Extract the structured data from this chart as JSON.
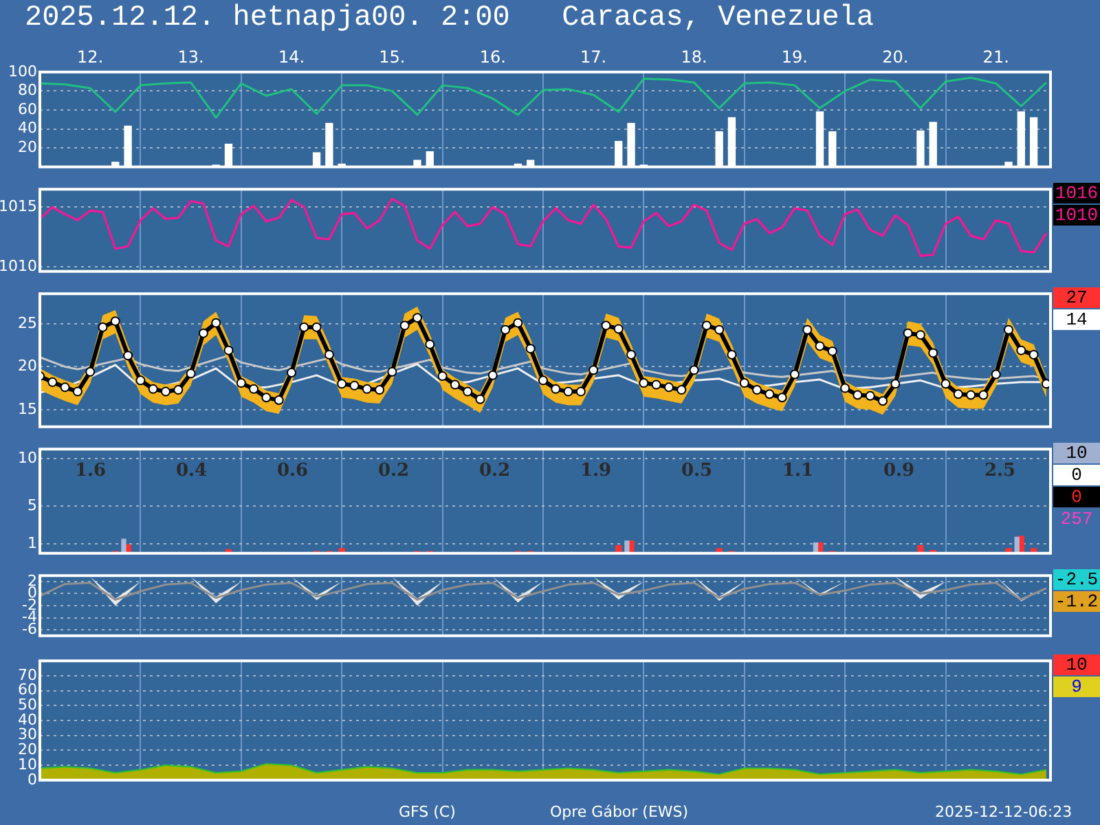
{
  "chart_data": [
    {
      "type": "line",
      "title": "2025.12.12. hetnapja00. 2:00   Caracas, Venezuela",
      "xlim": [
        "2025-12-12T00:00",
        "2025-12-22T01:00"
      ],
      "xticks": [
        {
          "value": "2025-12-12T12:00",
          "label": "12."
        },
        {
          "value": "2025-12-13T00:00",
          "label": null
        },
        {
          "value": "2025-12-13T12:00",
          "label": "13."
        },
        {
          "value": "2025-12-14T00:00",
          "label": null
        },
        {
          "value": "2025-12-14T12:00",
          "label": "14."
        },
        {
          "value": "2025-12-15T00:00",
          "label": null
        },
        {
          "value": "2025-12-15T12:00",
          "label": "15."
        },
        {
          "value": "2025-12-16T00:00",
          "label": null
        },
        {
          "value": "2025-12-16T12:00",
          "label": "16."
        },
        {
          "value": "2025-12-17T00:00",
          "label": null
        },
        {
          "value": "2025-12-17T12:00",
          "label": "17."
        },
        {
          "value": "2025-12-18T00:00",
          "label": null
        },
        {
          "value": "2025-12-18T12:00",
          "label": "18."
        },
        {
          "value": "2025-12-19T00:00",
          "label": null
        },
        {
          "value": "2025-12-19T12:00",
          "label": "19."
        },
        {
          "value": "2025-12-20T00:00",
          "label": null
        },
        {
          "value": "2025-12-20T12:00",
          "label": "20."
        },
        {
          "value": "2025-12-21T00:00",
          "label": null
        },
        {
          "value": "2025-12-21T12:00",
          "label": "21."
        }
      ],
      "ylim": [
        0,
        100
      ],
      "yticks": [
        20,
        40,
        60,
        80,
        100
      ],
      "grid": true,
      "x": [
        "2025-12-12T00:00",
        "2025-12-12T06:00",
        "2025-12-12T12:00",
        "2025-12-12T18:00",
        "2025-12-13T00:00",
        "2025-12-13T06:00",
        "2025-12-13T12:00",
        "2025-12-13T18:00",
        "2025-12-14T00:00",
        "2025-12-14T06:00",
        "2025-12-14T12:00",
        "2025-12-14T18:00",
        "2025-12-15T00:00",
        "2025-12-15T06:00",
        "2025-12-15T12:00",
        "2025-12-15T18:00",
        "2025-12-16T00:00",
        "2025-12-16T06:00",
        "2025-12-16T12:00",
        "2025-12-16T18:00",
        "2025-12-17T00:00",
        "2025-12-17T06:00",
        "2025-12-17T12:00",
        "2025-12-17T18:00",
        "2025-12-18T00:00",
        "2025-12-18T06:00",
        "2025-12-18T12:00",
        "2025-12-18T18:00",
        "2025-12-19T00:00",
        "2025-12-19T06:00",
        "2025-12-19T12:00",
        "2025-12-19T18:00",
        "2025-12-20T00:00",
        "2025-12-20T06:00",
        "2025-12-20T12:00",
        "2025-12-20T18:00",
        "2025-12-21T00:00",
        "2025-12-21T06:00",
        "2025-12-21T12:00",
        "2025-12-21T18:00",
        "2025-12-22T00:00"
      ],
      "series": [
        {
          "type": "bar",
          "color": "#ffffff",
          "x": [
            "2025-12-12T18:00",
            "2025-12-12T21:00",
            "2025-12-13T18:00",
            "2025-12-13T21:00",
            "2025-12-14T18:00",
            "2025-12-14T21:00",
            "2025-12-15T00:00",
            "2025-12-15T18:00",
            "2025-12-15T21:00",
            "2025-12-16T18:00",
            "2025-12-16T21:00",
            "2025-12-17T18:00",
            "2025-12-17T21:00",
            "2025-12-18T00:00",
            "2025-12-18T18:00",
            "2025-12-18T21:00",
            "2025-12-19T18:00",
            "2025-12-19T21:00",
            "2025-12-20T18:00",
            "2025-12-20T21:00",
            "2025-12-21T15:00",
            "2025-12-21T18:00",
            "2025-12-21T21:00"
          ],
          "values": [
            5,
            43,
            2,
            24,
            15,
            46,
            3,
            7,
            16,
            3,
            7,
            27,
            46,
            2,
            37,
            52,
            58,
            37,
            38,
            47,
            5,
            58,
            52
          ]
        },
        {
          "type": "line",
          "color": "#20c080",
          "values": [
            88,
            87,
            83,
            58,
            86,
            88,
            89,
            52,
            88,
            75,
            82,
            56,
            86,
            86,
            80,
            55,
            86,
            83,
            72,
            55,
            81,
            82,
            76,
            58,
            93,
            92,
            89,
            62,
            88,
            89,
            86,
            62,
            80,
            92,
            90,
            62,
            90,
            94,
            88,
            64,
            89
          ]
        }
      ]
    },
    {
      "type": "line",
      "tick_labels": "y",
      "xlim": [
        "2025-12-12T00:00",
        "2025-12-22T01:00"
      ],
      "xticks": [
        {
          "value": "2025-12-13T00:00",
          "label": null
        },
        {
          "value": "2025-12-14T00:00",
          "label": null
        },
        {
          "value": "2025-12-15T00:00",
          "label": null
        },
        {
          "value": "2025-12-16T00:00",
          "label": null
        },
        {
          "value": "2025-12-17T00:00",
          "label": null
        },
        {
          "value": "2025-12-18T00:00",
          "label": null
        },
        {
          "value": "2025-12-19T00:00",
          "label": null
        },
        {
          "value": "2025-12-20T00:00",
          "label": null
        },
        {
          "value": "2025-12-21T00:00",
          "label": null
        }
      ],
      "ylim": [
        1009.6,
        1016.5
      ],
      "yticks": [
        1010,
        1015
      ],
      "grid": true,
      "annotations": [
        "1016",
        "1010"
      ],
      "x": [
        "2025-12-12T00:00",
        "2025-12-12T03:00",
        "2025-12-12T06:00",
        "2025-12-12T09:00",
        "2025-12-12T12:00",
        "2025-12-12T15:00",
        "2025-12-12T18:00",
        "2025-12-12T21:00",
        "2025-12-13T00:00",
        "2025-12-13T03:00",
        "2025-12-13T06:00",
        "2025-12-13T09:00",
        "2025-12-13T12:00",
        "2025-12-13T15:00",
        "2025-12-13T18:00",
        "2025-12-13T21:00",
        "2025-12-14T00:00",
        "2025-12-14T03:00",
        "2025-12-14T06:00",
        "2025-12-14T09:00",
        "2025-12-14T12:00",
        "2025-12-14T15:00",
        "2025-12-14T18:00",
        "2025-12-14T21:00",
        "2025-12-15T00:00",
        "2025-12-15T03:00",
        "2025-12-15T06:00",
        "2025-12-15T09:00",
        "2025-12-15T12:00",
        "2025-12-15T15:00",
        "2025-12-15T18:00",
        "2025-12-15T21:00",
        "2025-12-16T00:00",
        "2025-12-16T03:00",
        "2025-12-16T06:00",
        "2025-12-16T09:00",
        "2025-12-16T12:00",
        "2025-12-16T15:00",
        "2025-12-16T18:00",
        "2025-12-16T21:00",
        "2025-12-17T00:00",
        "2025-12-17T03:00",
        "2025-12-17T06:00",
        "2025-12-17T09:00",
        "2025-12-17T12:00",
        "2025-12-17T15:00",
        "2025-12-17T18:00",
        "2025-12-17T21:00",
        "2025-12-18T00:00",
        "2025-12-18T03:00",
        "2025-12-18T06:00",
        "2025-12-18T09:00",
        "2025-12-18T12:00",
        "2025-12-18T15:00",
        "2025-12-18T18:00",
        "2025-12-18T21:00",
        "2025-12-19T00:00",
        "2025-12-19T03:00",
        "2025-12-19T06:00",
        "2025-12-19T09:00",
        "2025-12-19T12:00",
        "2025-12-19T15:00",
        "2025-12-19T18:00",
        "2025-12-19T21:00",
        "2025-12-20T00:00",
        "2025-12-20T03:00",
        "2025-12-20T06:00",
        "2025-12-20T09:00",
        "2025-12-20T12:00",
        "2025-12-20T15:00",
        "2025-12-20T18:00",
        "2025-12-20T21:00",
        "2025-12-21T00:00",
        "2025-12-21T03:00",
        "2025-12-21T06:00",
        "2025-12-21T09:00",
        "2025-12-21T12:00",
        "2025-12-21T15:00",
        "2025-12-21T18:00",
        "2025-12-21T21:00",
        "2025-12-22T00:00"
      ],
      "series": [
        {
          "color": "#ff1493",
          "values": [
            1014.0,
            1015.0,
            1014.4,
            1013.9,
            1014.7,
            1014.6,
            1011.5,
            1011.7,
            1013.9,
            1014.9,
            1014.0,
            1014.1,
            1015.5,
            1015.3,
            1012.2,
            1011.7,
            1014.4,
            1015.1,
            1013.8,
            1014.1,
            1015.6,
            1015.0,
            1012.4,
            1012.3,
            1014.4,
            1014.5,
            1013.2,
            1013.9,
            1015.7,
            1015.1,
            1012.2,
            1011.5,
            1013.5,
            1014.6,
            1013.4,
            1013.6,
            1015.0,
            1014.4,
            1011.9,
            1011.7,
            1013.8,
            1014.9,
            1013.9,
            1013.6,
            1015.2,
            1014.0,
            1011.7,
            1011.6,
            1013.8,
            1014.5,
            1013.4,
            1013.8,
            1015.2,
            1014.7,
            1012.0,
            1011.4,
            1013.6,
            1014.0,
            1012.8,
            1013.3,
            1014.9,
            1014.7,
            1012.6,
            1011.8,
            1014.4,
            1014.8,
            1013.1,
            1012.6,
            1014.3,
            1013.5,
            1010.9,
            1011.0,
            1013.6,
            1014.2,
            1012.6,
            1012.3,
            1013.9,
            1013.6,
            1011.3,
            1011.2,
            1012.8
          ]
        }
      ]
    },
    {
      "type": "line",
      "tick_labels": "y",
      "xlim": [
        "2025-12-12T00:00",
        "2025-12-22T01:00"
      ],
      "xticks": [
        {
          "value": "2025-12-13T00:00",
          "label": null
        },
        {
          "value": "2025-12-14T00:00",
          "label": null
        },
        {
          "value": "2025-12-15T00:00",
          "label": null
        },
        {
          "value": "2025-12-16T00:00",
          "label": null
        },
        {
          "value": "2025-12-17T00:00",
          "label": null
        },
        {
          "value": "2025-12-18T00:00",
          "label": null
        },
        {
          "value": "2025-12-19T00:00",
          "label": null
        },
        {
          "value": "2025-12-20T00:00",
          "label": null
        },
        {
          "value": "2025-12-21T00:00",
          "label": null
        }
      ],
      "ylim": [
        13,
        28.5
      ],
      "yticks": [
        15,
        20,
        25
      ],
      "grid": true,
      "annotations": [
        "27",
        "14"
      ],
      "x": [
        "2025-12-12T00:00",
        "2025-12-12T03:00",
        "2025-12-12T06:00",
        "2025-12-12T09:00",
        "2025-12-12T12:00",
        "2025-12-12T15:00",
        "2025-12-12T18:00",
        "2025-12-12T21:00",
        "2025-12-13T00:00",
        "2025-12-13T03:00",
        "2025-12-13T06:00",
        "2025-12-13T09:00",
        "2025-12-13T12:00",
        "2025-12-13T15:00",
        "2025-12-13T18:00",
        "2025-12-13T21:00",
        "2025-12-14T00:00",
        "2025-12-14T03:00",
        "2025-12-14T06:00",
        "2025-12-14T09:00",
        "2025-12-14T12:00",
        "2025-12-14T15:00",
        "2025-12-14T18:00",
        "2025-12-14T21:00",
        "2025-12-15T00:00",
        "2025-12-15T03:00",
        "2025-12-15T06:00",
        "2025-12-15T09:00",
        "2025-12-15T12:00",
        "2025-12-15T15:00",
        "2025-12-15T18:00",
        "2025-12-15T21:00",
        "2025-12-16T00:00",
        "2025-12-16T03:00",
        "2025-12-16T06:00",
        "2025-12-16T09:00",
        "2025-12-16T12:00",
        "2025-12-16T15:00",
        "2025-12-16T18:00",
        "2025-12-16T21:00",
        "2025-12-17T00:00",
        "2025-12-17T03:00",
        "2025-12-17T06:00",
        "2025-12-17T09:00",
        "2025-12-17T12:00",
        "2025-12-17T15:00",
        "2025-12-17T18:00",
        "2025-12-17T21:00",
        "2025-12-18T00:00",
        "2025-12-18T03:00",
        "2025-12-18T06:00",
        "2025-12-18T09:00",
        "2025-12-18T12:00",
        "2025-12-18T15:00",
        "2025-12-18T18:00",
        "2025-12-18T21:00",
        "2025-12-19T00:00",
        "2025-12-19T03:00",
        "2025-12-19T06:00",
        "2025-12-19T09:00",
        "2025-12-19T12:00",
        "2025-12-19T15:00",
        "2025-12-19T18:00",
        "2025-12-19T21:00",
        "2025-12-20T00:00",
        "2025-12-20T03:00",
        "2025-12-20T06:00",
        "2025-12-20T09:00",
        "2025-12-20T12:00",
        "2025-12-20T15:00",
        "2025-12-20T18:00",
        "2025-12-20T21:00",
        "2025-12-21T00:00",
        "2025-12-21T03:00",
        "2025-12-21T06:00",
        "2025-12-21T09:00",
        "2025-12-21T12:00",
        "2025-12-21T15:00",
        "2025-12-21T18:00",
        "2025-12-21T21:00",
        "2025-12-22T00:00"
      ],
      "series": [
        {
          "color": "#c8c8c8",
          "x": [
            "2025-12-12T00:00",
            "2025-12-12T06:00",
            "2025-12-12T09:00",
            "2025-12-12T21:00",
            "2025-12-13T00:00",
            "2025-12-13T06:00",
            "2025-12-13T09:00",
            "2025-12-13T21:00",
            "2025-12-14T00:00",
            "2025-12-14T06:00",
            "2025-12-14T09:00",
            "2025-12-14T21:00",
            "2025-12-15T00:00",
            "2025-12-15T06:00",
            "2025-12-15T09:00",
            "2025-12-15T21:00",
            "2025-12-16T00:00",
            "2025-12-16T06:00",
            "2025-12-16T09:00",
            "2025-12-16T21:00",
            "2025-12-17T00:00",
            "2025-12-17T06:00",
            "2025-12-17T09:00",
            "2025-12-17T21:00",
            "2025-12-18T00:00",
            "2025-12-18T06:00",
            "2025-12-18T09:00",
            "2025-12-18T21:00",
            "2025-12-19T00:00",
            "2025-12-19T06:00",
            "2025-12-19T09:00",
            "2025-12-19T21:00",
            "2025-12-20T00:00",
            "2025-12-20T06:00",
            "2025-12-20T09:00",
            "2025-12-20T21:00",
            "2025-12-21T00:00",
            "2025-12-21T06:00",
            "2025-12-21T09:00",
            "2025-12-21T21:00",
            "2025-12-22T00:00"
          ],
          "values": [
            21.1,
            20.0,
            19.7,
            21.0,
            20.3,
            19.6,
            19.5,
            21.3,
            20.5,
            19.8,
            19.6,
            21.0,
            20.3,
            19.5,
            19.4,
            20.8,
            19.9,
            19.3,
            19.2,
            20.6,
            19.8,
            19.2,
            19.1,
            20.4,
            19.6,
            19.0,
            18.9,
            19.9,
            19.3,
            18.9,
            18.8,
            19.5,
            19.0,
            18.7,
            18.6,
            19.3,
            18.9,
            18.6,
            18.5,
            18.9,
            18.6
          ]
        },
        {
          "color": "#f0f0f0",
          "x": [
            "2025-12-12T00:00",
            "2025-12-12T06:00",
            "2025-12-12T12:00",
            "2025-12-12T18:00",
            "2025-12-13T00:00",
            "2025-12-13T06:00",
            "2025-12-13T12:00",
            "2025-12-13T18:00",
            "2025-12-14T00:00",
            "2025-12-14T06:00",
            "2025-12-14T12:00",
            "2025-12-14T18:00",
            "2025-12-15T00:00",
            "2025-12-15T06:00",
            "2025-12-15T12:00",
            "2025-12-15T18:00",
            "2025-12-16T00:00",
            "2025-12-16T06:00",
            "2025-12-16T12:00",
            "2025-12-16T18:00",
            "2025-12-17T00:00",
            "2025-12-17T06:00",
            "2025-12-17T12:00",
            "2025-12-17T18:00",
            "2025-12-18T00:00",
            "2025-12-18T06:00",
            "2025-12-18T12:00",
            "2025-12-18T18:00",
            "2025-12-19T00:00",
            "2025-12-19T06:00",
            "2025-12-19T12:00",
            "2025-12-19T18:00",
            "2025-12-20T00:00",
            "2025-12-20T06:00",
            "2025-12-20T12:00",
            "2025-12-20T18:00",
            "2025-12-21T00:00",
            "2025-12-21T06:00",
            "2025-12-21T12:00",
            "2025-12-21T18:00",
            "2025-12-22T00:00"
          ],
          "values": [
            17.0,
            17.6,
            18.8,
            20.2,
            17.6,
            17.8,
            18.5,
            19.8,
            17.5,
            17.6,
            18.2,
            19.0,
            17.8,
            18.0,
            19.2,
            20.3,
            18.0,
            18.2,
            19.0,
            19.8,
            18.0,
            18.2,
            18.6,
            19.0,
            17.8,
            18.0,
            18.4,
            18.6,
            17.6,
            17.8,
            18.2,
            18.5,
            17.4,
            17.6,
            18.0,
            18.4,
            17.5,
            17.7,
            18.0,
            18.2,
            18.2
          ]
        },
        {
          "color": "#000000",
          "marker": "circle",
          "values": [
            18.9,
            18.2,
            17.6,
            17.1,
            19.4,
            24.6,
            25.3,
            21.3,
            18.4,
            17.4,
            17.1,
            17.3,
            19.2,
            23.9,
            25.1,
            21.9,
            18.1,
            17.4,
            16.4,
            16.1,
            19.3,
            24.6,
            24.6,
            21.4,
            18.0,
            17.8,
            17.4,
            17.3,
            19.4,
            24.8,
            25.7,
            22.6,
            18.9,
            17.9,
            17.1,
            16.2,
            19.0,
            24.3,
            25.1,
            22.1,
            18.4,
            17.4,
            17.1,
            17.1,
            19.6,
            24.8,
            24.4,
            21.4,
            18.1,
            17.9,
            17.6,
            17.3,
            19.6,
            24.8,
            24.3,
            21.4,
            18.1,
            17.3,
            16.8,
            16.4,
            19.1,
            24.3,
            22.4,
            21.8,
            17.5,
            16.7,
            16.6,
            16.0,
            18.0,
            23.9,
            23.7,
            21.6,
            18.0,
            16.8,
            16.7,
            16.7,
            19.1,
            24.3,
            21.9,
            21.4,
            18.0
          ],
          "upper": [
            19.8,
            19.0,
            18.4,
            17.9,
            20.3,
            26.0,
            26.6,
            22.5,
            19.2,
            18.2,
            17.9,
            18.1,
            20.1,
            25.3,
            26.4,
            23.1,
            18.9,
            18.2,
            17.2,
            16.9,
            20.2,
            26.0,
            25.9,
            22.6,
            18.8,
            18.6,
            18.2,
            18.1,
            20.3,
            26.2,
            27.0,
            23.8,
            19.7,
            18.7,
            17.9,
            17.0,
            19.9,
            25.7,
            26.4,
            23.3,
            19.2,
            18.2,
            17.9,
            17.9,
            20.5,
            26.2,
            25.7,
            22.6,
            18.9,
            18.7,
            18.4,
            18.1,
            20.5,
            26.2,
            25.6,
            22.6,
            18.9,
            18.1,
            17.6,
            17.2,
            20.0,
            25.7,
            23.7,
            23.0,
            18.3,
            17.5,
            17.4,
            16.8,
            18.9,
            25.3,
            25.0,
            22.8,
            18.8,
            17.6,
            17.5,
            17.5,
            20.0,
            25.7,
            23.2,
            22.6,
            18.8
          ],
          "lower": [
            17.3,
            16.6,
            16.0,
            15.5,
            18.0,
            23.2,
            23.9,
            19.9,
            16.8,
            15.8,
            15.5,
            15.7,
            17.8,
            22.5,
            23.7,
            20.5,
            16.5,
            15.8,
            14.8,
            14.5,
            17.9,
            23.2,
            23.2,
            20.0,
            16.4,
            16.2,
            15.8,
            15.7,
            18.0,
            23.4,
            24.3,
            21.2,
            17.3,
            16.3,
            15.5,
            14.6,
            17.6,
            22.9,
            23.7,
            20.7,
            16.8,
            15.8,
            15.5,
            15.5,
            18.2,
            23.4,
            23.0,
            20.0,
            16.5,
            16.3,
            16.0,
            15.7,
            18.2,
            23.4,
            22.9,
            20.0,
            16.5,
            15.7,
            15.2,
            14.8,
            17.7,
            22.9,
            21.0,
            20.4,
            15.9,
            15.1,
            15.0,
            14.4,
            16.6,
            22.5,
            22.3,
            20.2,
            16.4,
            15.2,
            15.1,
            15.1,
            17.7,
            22.9,
            20.5,
            20.0,
            16.4
          ]
        }
      ]
    },
    {
      "type": "bar",
      "tick_labels": "y",
      "xlim": [
        "2025-12-12T00:00",
        "2025-12-22T01:00"
      ],
      "xticks": [
        {
          "value": "2025-12-13T00:00",
          "label": null
        },
        {
          "value": "2025-12-14T00:00",
          "label": null
        },
        {
          "value": "2025-12-15T00:00",
          "label": null
        },
        {
          "value": "2025-12-16T00:00",
          "label": null
        },
        {
          "value": "2025-12-17T00:00",
          "label": null
        },
        {
          "value": "2025-12-18T00:00",
          "label": null
        },
        {
          "value": "2025-12-19T00:00",
          "label": null
        },
        {
          "value": "2025-12-20T00:00",
          "label": null
        },
        {
          "value": "2025-12-21T00:00",
          "label": null
        }
      ],
      "ylim": [
        0,
        11
      ],
      "yticks": [
        1,
        5,
        10
      ],
      "grid": true,
      "annotations": [
        "10",
        "0",
        "0",
        "257",
        "1.6",
        "0.4",
        "0.6",
        "0.2",
        "0.2",
        "1.9",
        "0.5",
        "1.1",
        "0.9",
        "2.5"
      ],
      "series": [
        {
          "color": "#ff3030",
          "x": [
            "2025-12-12T18:00",
            "2025-12-12T21:00",
            "2025-12-13T21:00",
            "2025-12-14T18:00",
            "2025-12-14T21:00",
            "2025-12-15T00:00",
            "2025-12-15T18:00",
            "2025-12-15T21:00",
            "2025-12-16T18:00",
            "2025-12-16T21:00",
            "2025-12-17T18:00",
            "2025-12-17T21:00",
            "2025-12-18T18:00",
            "2025-12-18T21:00",
            "2025-12-19T18:00",
            "2025-12-19T21:00",
            "2025-12-20T18:00",
            "2025-12-20T21:00",
            "2025-12-21T15:00",
            "2025-12-21T18:00",
            "2025-12-21T21:00"
          ],
          "values": [
            0.2,
            0.9,
            0.4,
            0.2,
            0.2,
            0.5,
            0.2,
            0.2,
            0.2,
            0.2,
            0.8,
            1.3,
            0.5,
            0.2,
            1.1,
            0.2,
            0.8,
            0.3,
            0.5,
            1.8,
            0.5
          ]
        },
        {
          "color": "#a8b8d8",
          "x": [
            "2025-12-12T20:00",
            "2025-12-17T20:00",
            "2025-12-19T17:00",
            "2025-12-21T17:00"
          ],
          "values": [
            1.5,
            1.3,
            1.1,
            1.7
          ]
        }
      ]
    },
    {
      "type": "line",
      "tick_labels": "y",
      "xlim": [
        "2025-12-12T00:00",
        "2025-12-22T01:00"
      ],
      "xticks": [
        {
          "value": "2025-12-13T00:00",
          "label": null
        },
        {
          "value": "2025-12-14T00:00",
          "label": null
        },
        {
          "value": "2025-12-15T00:00",
          "label": null
        },
        {
          "value": "2025-12-16T00:00",
          "label": null
        },
        {
          "value": "2025-12-17T00:00",
          "label": null
        },
        {
          "value": "2025-12-18T00:00",
          "label": null
        },
        {
          "value": "2025-12-19T00:00",
          "label": null
        },
        {
          "value": "2025-12-20T00:00",
          "label": null
        },
        {
          "value": "2025-12-21T00:00",
          "label": null
        }
      ],
      "ylim": [
        -7,
        3
      ],
      "yticks": [
        2,
        0,
        -2,
        -4,
        -6
      ],
      "grid": true,
      "annotations": [
        "-2.5",
        "-1.2"
      ],
      "x": [
        "2025-12-12T00:00",
        "2025-12-12T06:00",
        "2025-12-12T12:00",
        "2025-12-12T18:00",
        "2025-12-13T00:00",
        "2025-12-13T06:00",
        "2025-12-13T12:00",
        "2025-12-13T18:00",
        "2025-12-14T00:00",
        "2025-12-14T06:00",
        "2025-12-14T12:00",
        "2025-12-14T18:00",
        "2025-12-15T00:00",
        "2025-12-15T06:00",
        "2025-12-15T12:00",
        "2025-12-15T18:00",
        "2025-12-16T00:00",
        "2025-12-16T06:00",
        "2025-12-16T12:00",
        "2025-12-16T18:00",
        "2025-12-17T00:00",
        "2025-12-17T06:00",
        "2025-12-17T12:00",
        "2025-12-17T18:00",
        "2025-12-18T00:00",
        "2025-12-18T06:00",
        "2025-12-18T12:00",
        "2025-12-18T18:00",
        "2025-12-19T00:00",
        "2025-12-19T06:00",
        "2025-12-19T12:00",
        "2025-12-19T18:00",
        "2025-12-20T00:00",
        "2025-12-20T06:00",
        "2025-12-20T12:00",
        "2025-12-20T18:00",
        "2025-12-21T00:00",
        "2025-12-21T06:00",
        "2025-12-21T12:00",
        "2025-12-21T18:00",
        "2025-12-22T00:00"
      ],
      "series": [
        {
          "color": "#909090",
          "values": [
            -0.4,
            1.6,
            1.8,
            -1.0,
            0.4,
            1.5,
            1.8,
            -0.7,
            0.6,
            1.5,
            1.8,
            -0.5,
            0.5,
            1.6,
            1.8,
            -1.0,
            0.6,
            1.5,
            1.8,
            -0.7,
            0.4,
            1.5,
            1.8,
            -0.2,
            0.5,
            1.5,
            1.8,
            -0.7,
            0.8,
            1.6,
            1.8,
            -0.2,
            0.5,
            1.5,
            1.8,
            0.0,
            0.6,
            1.5,
            1.8,
            -1.0,
            0.9
          ],
          "upper": [
            2.0,
            2.5,
            2.8,
            -0.8,
            2.0,
            2.5,
            2.8,
            -0.5,
            2.0,
            2.5,
            2.8,
            -0.3,
            2.0,
            2.5,
            2.8,
            -0.8,
            2.0,
            2.5,
            2.8,
            -0.5,
            2.0,
            2.5,
            2.8,
            0.0,
            2.0,
            2.5,
            2.8,
            -0.5,
            2.0,
            2.5,
            2.8,
            0.0,
            2.0,
            2.5,
            2.8,
            0.2,
            2.0,
            2.5,
            2.8,
            -0.8,
            1.0
          ],
          "lower": [
            2.0,
            2.5,
            2.8,
            -2.0,
            2.0,
            2.5,
            2.8,
            -1.6,
            2.0,
            2.5,
            2.8,
            -1.1,
            2.0,
            2.5,
            2.8,
            -2.0,
            2.0,
            2.5,
            2.8,
            -1.5,
            2.0,
            2.5,
            2.8,
            -1.0,
            2.0,
            2.5,
            2.8,
            -1.2,
            2.0,
            2.5,
            2.8,
            -0.4,
            2.0,
            2.5,
            2.8,
            -0.9,
            2.0,
            2.5,
            2.8,
            -1.3,
            1.0
          ]
        }
      ]
    },
    {
      "type": "area",
      "tick_labels": "y",
      "xlim": [
        "2025-12-12T00:00",
        "2025-12-22T01:00"
      ],
      "xticks": [
        {
          "value": "2025-12-13T00:00",
          "label": null
        },
        {
          "value": "2025-12-14T00:00",
          "label": null
        },
        {
          "value": "2025-12-15T00:00",
          "label": null
        },
        {
          "value": "2025-12-16T00:00",
          "label": null
        },
        {
          "value": "2025-12-17T00:00",
          "label": null
        },
        {
          "value": "2025-12-18T00:00",
          "label": null
        },
        {
          "value": "2025-12-19T00:00",
          "label": null
        },
        {
          "value": "2025-12-20T00:00",
          "label": null
        },
        {
          "value": "2025-12-21T00:00",
          "label": null
        }
      ],
      "ylim": [
        0,
        80
      ],
      "yticks": [
        0,
        10,
        20,
        30,
        40,
        50,
        60,
        70
      ],
      "grid": true,
      "annotations": [
        "10",
        "9"
      ],
      "x": [
        "2025-12-12T00:00",
        "2025-12-12T06:00",
        "2025-12-12T12:00",
        "2025-12-12T18:00",
        "2025-12-13T00:00",
        "2025-12-13T06:00",
        "2025-12-13T12:00",
        "2025-12-13T18:00",
        "2025-12-14T00:00",
        "2025-12-14T06:00",
        "2025-12-14T12:00",
        "2025-12-14T18:00",
        "2025-12-15T00:00",
        "2025-12-15T06:00",
        "2025-12-15T12:00",
        "2025-12-15T18:00",
        "2025-12-16T00:00",
        "2025-12-16T06:00",
        "2025-12-16T12:00",
        "2025-12-16T18:00",
        "2025-12-17T00:00",
        "2025-12-17T06:00",
        "2025-12-17T12:00",
        "2025-12-17T18:00",
        "2025-12-18T00:00",
        "2025-12-18T06:00",
        "2025-12-18T12:00",
        "2025-12-18T18:00",
        "2025-12-19T00:00",
        "2025-12-19T06:00",
        "2025-12-19T12:00",
        "2025-12-19T18:00",
        "2025-12-20T00:00",
        "2025-12-20T06:00",
        "2025-12-20T12:00",
        "2025-12-20T18:00",
        "2025-12-21T00:00",
        "2025-12-21T06:00",
        "2025-12-21T12:00",
        "2025-12-21T18:00",
        "2025-12-22T00:00"
      ],
      "series": [
        {
          "color": "#30c030",
          "values": [
            8,
            9,
            8,
            5,
            7,
            10,
            9,
            5,
            6,
            11,
            10,
            5,
            7,
            9,
            8,
            5,
            5,
            7,
            7,
            6,
            7,
            8,
            7,
            5,
            6,
            7,
            6,
            4,
            8,
            8,
            7,
            4,
            5,
            6,
            7,
            5,
            6,
            7,
            6,
            4,
            7
          ]
        },
        {
          "color": "#b0b000",
          "values": [
            7,
            8,
            7,
            4,
            6,
            9,
            8,
            4,
            5,
            10,
            9,
            4,
            6,
            8,
            7,
            4,
            4,
            6,
            6,
            5,
            6,
            7,
            6,
            4,
            5,
            6,
            5,
            3,
            7,
            7,
            6,
            3,
            4,
            5,
            6,
            4,
            5,
            6,
            5,
            3,
            6
          ]
        }
      ]
    },
    {
      "type": "other",
      "annotations": [
        "GFS (C)",
        "Opre Gábor (EWS)",
        "2025-12-12-06:23"
      ]
    }
  ]
}
